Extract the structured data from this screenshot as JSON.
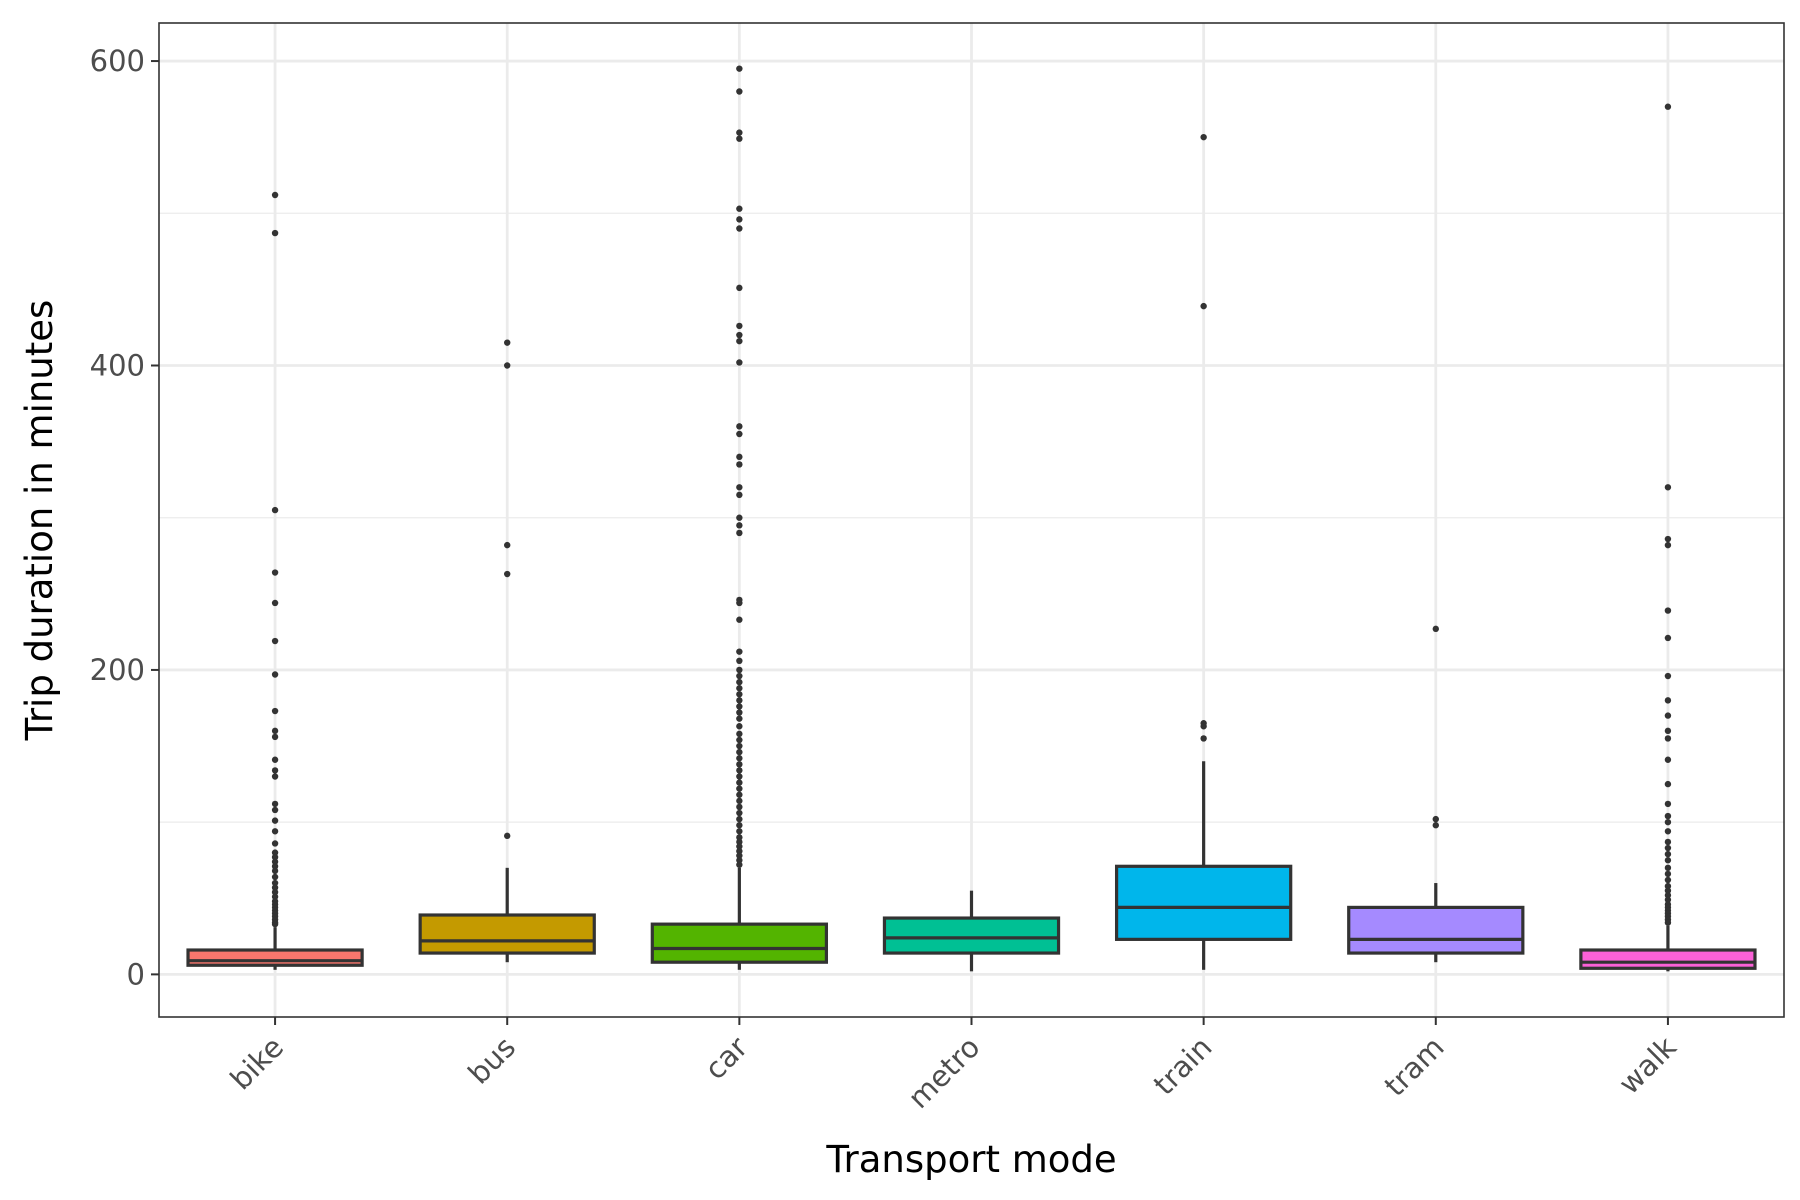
{
  "chart_data": {
    "type": "boxplot",
    "xlabel": "Transport mode",
    "ylabel": "Trip duration in minutes",
    "ylim": [
      -28,
      625
    ],
    "y_ticks": [
      0,
      200,
      400,
      600
    ],
    "grid": true,
    "categories": [
      "bike",
      "bus",
      "car",
      "metro",
      "train",
      "tram",
      "walk"
    ],
    "boxes": [
      {
        "category": "bike",
        "color": "#F8766D",
        "whisker_low": 3,
        "q1": 6,
        "median": 9,
        "q3": 16,
        "whisker_high": 31,
        "outliers": [
          512,
          487,
          305,
          264,
          244,
          219,
          197,
          173,
          160,
          156,
          141,
          134,
          130,
          112,
          108,
          101,
          94,
          86,
          80,
          77,
          74,
          71,
          68,
          64,
          60,
          57,
          54,
          51,
          48,
          46,
          44,
          42,
          40,
          38,
          36,
          34,
          33
        ]
      },
      {
        "category": "bus",
        "color": "#C49A00",
        "whisker_low": 8,
        "q1": 14,
        "median": 22,
        "q3": 39,
        "whisker_high": 70,
        "outliers": [
          415,
          400,
          282,
          263,
          91
        ]
      },
      {
        "category": "car",
        "color": "#53B400",
        "whisker_low": 3,
        "q1": 8,
        "median": 17,
        "q3": 33,
        "whisker_high": 70,
        "outliers": [
          595,
          580,
          553,
          549,
          503,
          496,
          490,
          451,
          426,
          420,
          416,
          402,
          360,
          355,
          340,
          335,
          320,
          315,
          300,
          295,
          290,
          246,
          244,
          233,
          212,
          206,
          200,
          196,
          192,
          188,
          184,
          180,
          176,
          172,
          168,
          163,
          158,
          154,
          150,
          146,
          142,
          138,
          134,
          130,
          126,
          122,
          118,
          114,
          110,
          106,
          102,
          98,
          94,
          90,
          87,
          84,
          81,
          78,
          75,
          72
        ]
      },
      {
        "category": "metro",
        "color": "#00C094",
        "whisker_low": 2,
        "q1": 14,
        "median": 24,
        "q3": 37,
        "whisker_high": 55,
        "outliers": []
      },
      {
        "category": "train",
        "color": "#00B6EB",
        "whisker_low": 3,
        "q1": 23,
        "median": 44,
        "q3": 71,
        "whisker_high": 140,
        "outliers": [
          550,
          439,
          165,
          163,
          155
        ]
      },
      {
        "category": "tram",
        "color": "#A58AFF",
        "whisker_low": 8,
        "q1": 14,
        "median": 23,
        "q3": 44,
        "whisker_high": 60,
        "outliers": [
          227,
          102,
          98
        ]
      },
      {
        "category": "walk",
        "color": "#FB61D7",
        "whisker_low": 2,
        "q1": 4,
        "median": 8,
        "q3": 16,
        "whisker_high": 32,
        "outliers": [
          570,
          320,
          286,
          282,
          239,
          221,
          196,
          180,
          170,
          160,
          155,
          141,
          125,
          112,
          104,
          100,
          94,
          87,
          83,
          79,
          75,
          70,
          66,
          62,
          58,
          55,
          52,
          49,
          46,
          44,
          42,
          40,
          38,
          36,
          34
        ]
      }
    ]
  }
}
